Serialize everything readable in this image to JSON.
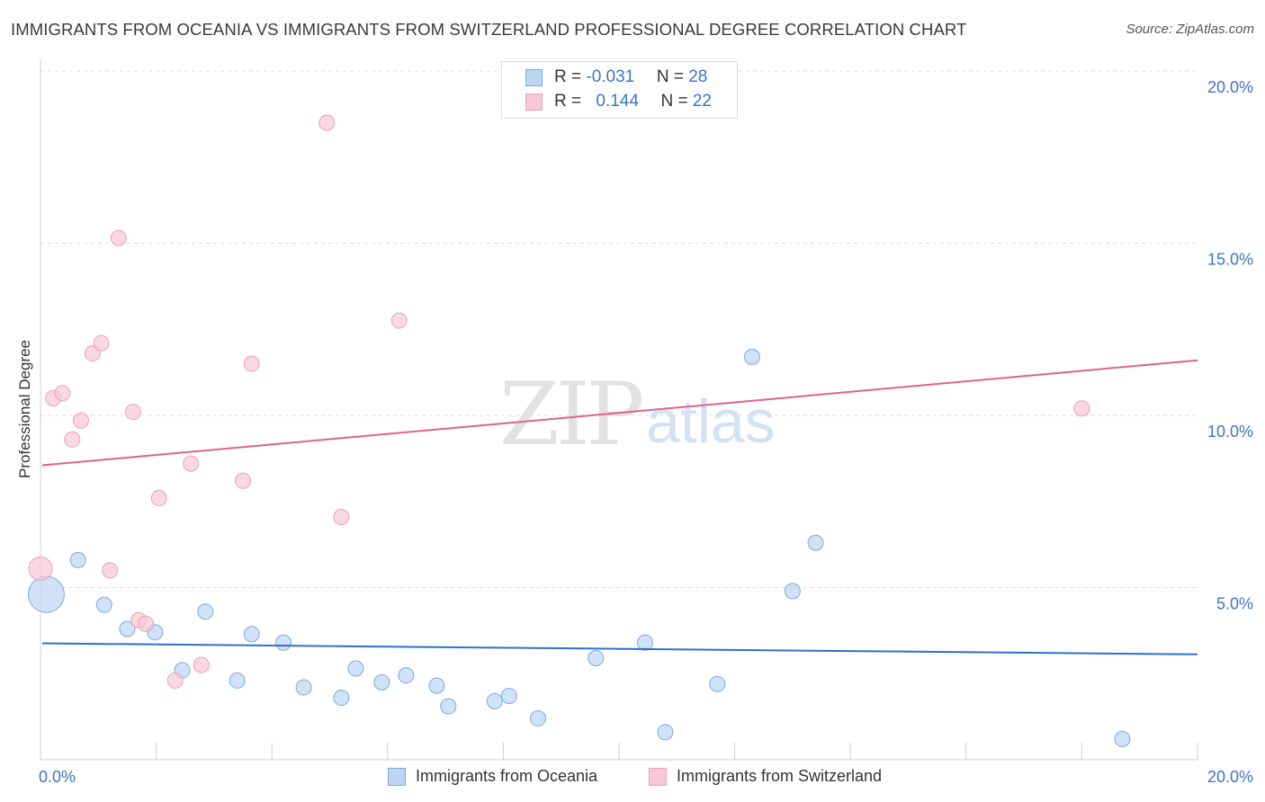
{
  "header": {
    "title": "IMMIGRANTS FROM OCEANIA VS IMMIGRANTS FROM SWITZERLAND PROFESSIONAL DEGREE CORRELATION CHART",
    "source": "Source: ZipAtlas.com"
  },
  "watermark": {
    "zip": "ZIP",
    "atlas": "atlas"
  },
  "colors": {
    "oceania_fill": "#bcd5f3",
    "oceania_stroke": "#7fa9df",
    "oceania_line": "#2f6fd0",
    "switzerland_fill": "#f8c8d6",
    "switzerland_stroke": "#eba0b8",
    "switzerland_line": "#e0628a",
    "tick_label": "#3a75c4",
    "grid": "#dddddd"
  },
  "legend": {
    "rows": [
      {
        "r_label": "R = ",
        "r_value": "-0.031",
        "n_label": "N = ",
        "n_value": "28"
      },
      {
        "r_label": "R = ",
        "r_value": "0.144",
        "n_label": "N = ",
        "n_value": "22"
      }
    ]
  },
  "chart_data": {
    "type": "scatter",
    "title": "IMMIGRANTS FROM OCEANIA VS IMMIGRANTS FROM SWITZERLAND PROFESSIONAL DEGREE CORRELATION CHART",
    "xlabel": "",
    "ylabel": "Professional Degree",
    "xlim": [
      0,
      20
    ],
    "ylim": [
      0,
      20
    ],
    "x_tick_labels": [
      "0.0%",
      "20.0%"
    ],
    "y_tick_labels": [
      "5.0%",
      "10.0%",
      "15.0%",
      "20.0%"
    ],
    "y_ticks": [
      5,
      10,
      15,
      20
    ],
    "grid": true,
    "legend_position": "bottom",
    "series": [
      {
        "name": "Immigrants from Oceania",
        "trend": {
          "x": [
            0,
            20
          ],
          "y": [
            3.38,
            3.06
          ]
        },
        "points": [
          {
            "x": 0.1,
            "y": 4.8,
            "size": "large"
          },
          {
            "x": 0.65,
            "y": 5.8
          },
          {
            "x": 1.1,
            "y": 4.5
          },
          {
            "x": 1.5,
            "y": 3.8
          },
          {
            "x": 1.98,
            "y": 3.7
          },
          {
            "x": 2.45,
            "y": 2.6
          },
          {
            "x": 2.85,
            "y": 4.3
          },
          {
            "x": 3.4,
            "y": 2.3
          },
          {
            "x": 3.65,
            "y": 3.65
          },
          {
            "x": 4.2,
            "y": 3.4
          },
          {
            "x": 4.55,
            "y": 2.1
          },
          {
            "x": 5.2,
            "y": 1.8
          },
          {
            "x": 5.45,
            "y": 2.65
          },
          {
            "x": 5.9,
            "y": 2.25
          },
          {
            "x": 6.32,
            "y": 2.45
          },
          {
            "x": 6.85,
            "y": 2.15
          },
          {
            "x": 7.05,
            "y": 1.55
          },
          {
            "x": 7.85,
            "y": 1.7
          },
          {
            "x": 8.1,
            "y": 1.85
          },
          {
            "x": 8.6,
            "y": 1.2
          },
          {
            "x": 9.6,
            "y": 2.95
          },
          {
            "x": 10.45,
            "y": 3.4
          },
          {
            "x": 10.8,
            "y": 0.8
          },
          {
            "x": 11.7,
            "y": 2.2
          },
          {
            "x": 12.3,
            "y": 11.7
          },
          {
            "x": 13.0,
            "y": 4.9
          },
          {
            "x": 13.4,
            "y": 6.3
          },
          {
            "x": 18.7,
            "y": 0.6
          }
        ]
      },
      {
        "name": "Immigrants from Switzerland",
        "trend": {
          "x": [
            0,
            20
          ],
          "y": [
            8.55,
            11.6
          ]
        },
        "points": [
          {
            "x": 0.0,
            "y": 5.55,
            "size": "medium"
          },
          {
            "x": 0.22,
            "y": 10.5
          },
          {
            "x": 0.38,
            "y": 10.65
          },
          {
            "x": 0.55,
            "y": 9.3
          },
          {
            "x": 0.7,
            "y": 9.85
          },
          {
            "x": 0.9,
            "y": 11.8
          },
          {
            "x": 1.05,
            "y": 12.1
          },
          {
            "x": 1.2,
            "y": 5.5
          },
          {
            "x": 1.35,
            "y": 15.15
          },
          {
            "x": 1.6,
            "y": 10.1
          },
          {
            "x": 1.7,
            "y": 4.05
          },
          {
            "x": 1.82,
            "y": 3.95
          },
          {
            "x": 2.05,
            "y": 7.6
          },
          {
            "x": 2.33,
            "y": 2.3
          },
          {
            "x": 2.6,
            "y": 8.6
          },
          {
            "x": 2.78,
            "y": 2.75
          },
          {
            "x": 3.5,
            "y": 8.1
          },
          {
            "x": 3.65,
            "y": 11.5
          },
          {
            "x": 4.95,
            "y": 18.5
          },
          {
            "x": 5.2,
            "y": 7.05
          },
          {
            "x": 6.2,
            "y": 12.75
          },
          {
            "x": 18.0,
            "y": 10.2
          }
        ]
      }
    ]
  }
}
